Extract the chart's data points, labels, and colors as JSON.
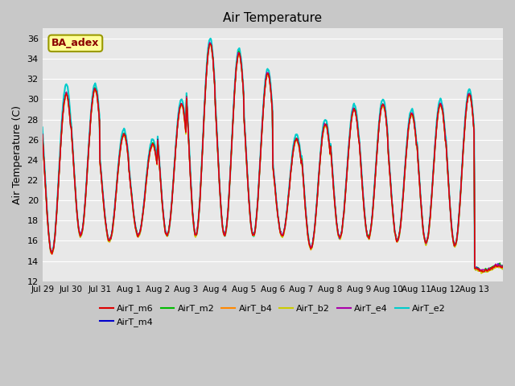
{
  "title": "Air Temperature",
  "ylabel": "Air Temperature (C)",
  "ylim": [
    12,
    37
  ],
  "yticks": [
    12,
    14,
    16,
    18,
    20,
    22,
    24,
    26,
    28,
    30,
    32,
    34,
    36
  ],
  "fig_bg_color": "#c8c8c8",
  "plot_bg_color": "#e8e8e8",
  "grid_color": "white",
  "series": [
    {
      "name": "AirT_m6",
      "color": "#dd0000",
      "lw": 1.0,
      "zorder": 6
    },
    {
      "name": "AirT_m4",
      "color": "#0000cc",
      "lw": 1.0,
      "zorder": 5
    },
    {
      "name": "AirT_m2",
      "color": "#00bb00",
      "lw": 1.0,
      "zorder": 5
    },
    {
      "name": "AirT_b4",
      "color": "#ff8800",
      "lw": 1.0,
      "zorder": 5
    },
    {
      "name": "AirT_b2",
      "color": "#cccc00",
      "lw": 1.0,
      "zorder": 5
    },
    {
      "name": "AirT_e4",
      "color": "#aa00aa",
      "lw": 1.0,
      "zorder": 5
    },
    {
      "name": "AirT_e2",
      "color": "#00cccc",
      "lw": 1.5,
      "zorder": 3
    }
  ],
  "annotation_text": "BA_adex",
  "xtick_labels": [
    "Jul 29",
    "Jul 30",
    "Jul 31",
    "Aug 1",
    "Aug 2",
    "Aug 3",
    "Aug 4",
    "Aug 5",
    "Aug 6",
    "Aug 7",
    "Aug 8",
    "Aug 9",
    "Aug 10",
    "Aug 11",
    "Aug 12",
    "Aug 13"
  ],
  "day_peaks": [
    30.5,
    31.0,
    26.5,
    25.5,
    29.5,
    35.5,
    34.5,
    32.5,
    26.0,
    27.5,
    29.0,
    29.5,
    28.5,
    29.5,
    30.5,
    13.5
  ],
  "day_troughs": [
    14.8,
    16.5,
    16.0,
    16.5,
    16.5,
    16.5,
    16.5,
    16.5,
    16.5,
    15.3,
    16.3,
    16.3,
    16.0,
    15.8,
    15.5,
    13.0
  ],
  "e2_extra": [
    1.0,
    0.5,
    0.5,
    0.5,
    0.5,
    0.5,
    0.5,
    0.5,
    0.5,
    0.5,
    0.5,
    0.5,
    0.5,
    0.5,
    0.5,
    0.0
  ]
}
